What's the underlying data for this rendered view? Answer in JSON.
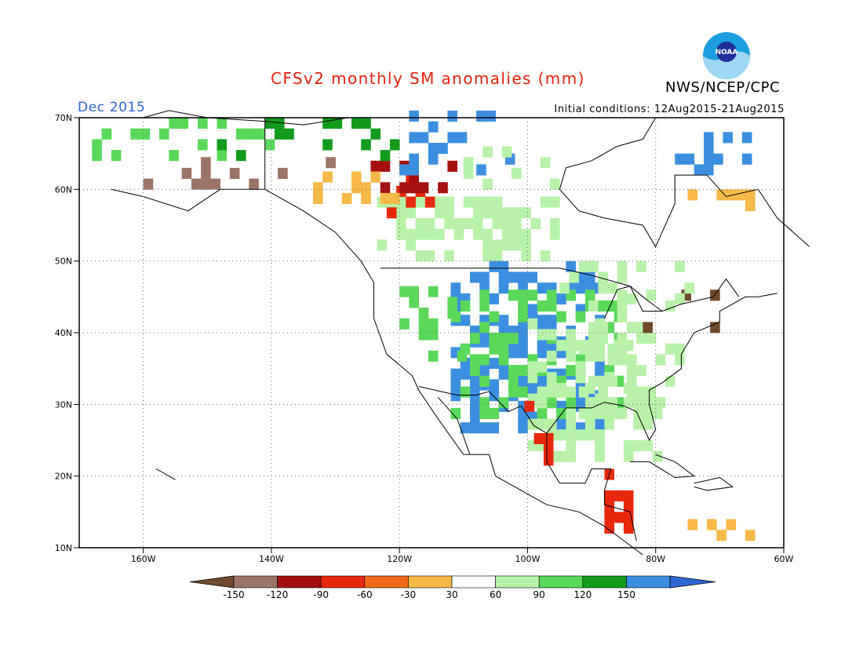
{
  "title": "CFSv2 monthly SM anomalies (mm)",
  "valid_month": "Dec 2015",
  "init_conditions": "Initial conditions: 12Aug2015-21Aug2015",
  "agency": "NWS/NCEP/CPC",
  "logo_text": "NOAA",
  "axes": {
    "lat_labels": [
      "70N",
      "60N",
      "50N",
      "40N",
      "30N",
      "20N",
      "10N"
    ],
    "lon_labels": [
      "160W",
      "140W",
      "120W",
      "100W",
      "80W",
      "60W"
    ]
  },
  "colorbar": {
    "labels": [
      "-150",
      "-120",
      "-90",
      "-60",
      "-30",
      "30",
      "60",
      "90",
      "120",
      "150"
    ],
    "colors": [
      "#704a2b",
      "#9c7468",
      "#a50f0f",
      "#e8280c",
      "#ef6a18",
      "#f7b947",
      "#ffffff",
      "#b8f2a8",
      "#5ad85a",
      "#139b1c",
      "#3c8fe0",
      "#2d67d6"
    ]
  },
  "colors": {
    "dry_strong": "#9c7468",
    "dry_brown": "#704a2b",
    "dry_darkred": "#a50f0f",
    "dry_red": "#e8280c",
    "dry_orange": "#f7b947",
    "wet_light": "#b8f2a8",
    "wet_mid": "#5ad85a",
    "wet_dark": "#139b1c",
    "wet_blue": "#3c8fe0"
  }
}
